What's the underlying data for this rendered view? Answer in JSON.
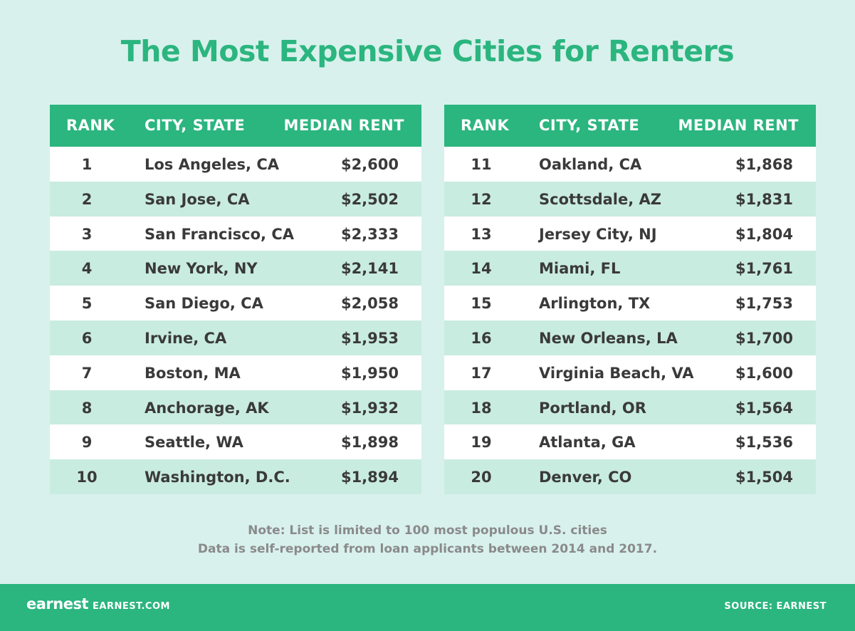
{
  "header": {
    "title": "The Most Expensive Cities for Renters"
  },
  "tables": [
    {
      "columns": [
        "RANK",
        "CITY, STATE",
        "MEDIAN RENT"
      ],
      "rows": [
        [
          1,
          "Los Angeles, CA",
          "$2,600"
        ],
        [
          2,
          "San Jose, CA",
          "$2,502"
        ],
        [
          3,
          "San Francisco, CA",
          "$2,333"
        ],
        [
          4,
          "New York, NY",
          "$2,141"
        ],
        [
          5,
          "San Diego, CA",
          "$2,058"
        ],
        [
          6,
          "Irvine, CA",
          "$1,953"
        ],
        [
          7,
          "Boston, MA",
          "$1,950"
        ],
        [
          8,
          "Anchorage, AK",
          "$1,932"
        ],
        [
          9,
          "Seattle, WA",
          "$1,898"
        ],
        [
          10,
          "Washington, D.C.",
          "$1,894"
        ]
      ]
    },
    {
      "columns": [
        "RANK",
        "CITY, STATE",
        "MEDIAN RENT"
      ],
      "rows": [
        [
          11,
          "Oakland, CA",
          "$1,868"
        ],
        [
          12,
          "Scottsdale, AZ",
          "$1,831"
        ],
        [
          13,
          "Jersey City, NJ",
          "$1,804"
        ],
        [
          14,
          "Miami, FL",
          "$1,761"
        ],
        [
          15,
          "Arlington, TX",
          "$1,753"
        ],
        [
          16,
          "New Orleans, LA",
          "$1,700"
        ],
        [
          17,
          "Virginia Beach, VA",
          "$1,600"
        ],
        [
          18,
          "Portland, OR",
          "$1,564"
        ],
        [
          19,
          "Atlanta, GA",
          "$1,536"
        ],
        [
          20,
          "Denver, CO",
          "$1,504"
        ]
      ]
    }
  ],
  "notes": [
    "Note: List is limited to 100 most populous U.S. cities",
    "Data is self-reported from loan applicants between 2014 and 2017."
  ],
  "footer": {
    "logo": "earnest",
    "url": "EARNEST.COM",
    "source": "SOURCE: EARNEST"
  }
}
